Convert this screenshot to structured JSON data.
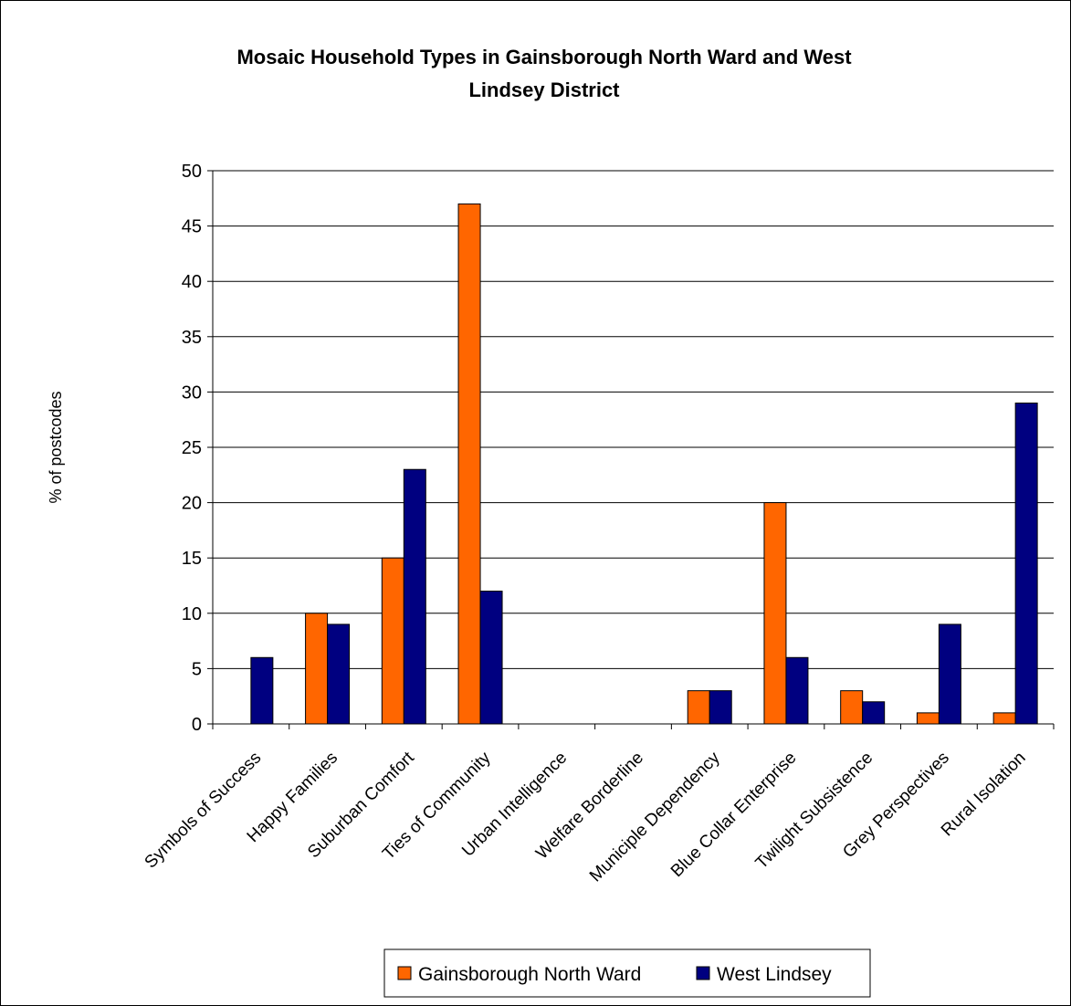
{
  "chart_data": {
    "type": "bar",
    "title": [
      "Mosaic Household Types in Gainsborough North Ward and West",
      "Lindsey District"
    ],
    "xlabel": "",
    "ylabel": "% of postcodes",
    "ylim": [
      0,
      50
    ],
    "yticks": [
      0,
      5,
      10,
      15,
      20,
      25,
      30,
      35,
      40,
      45,
      50
    ],
    "grid": "horizontal",
    "legend_position": "bottom",
    "categories": [
      "Symbols of Success",
      "Happy Families",
      "Suburban Comfort",
      "Ties of Community",
      "Urban Intelligence",
      "Welfare Borderline",
      "Municiple Dependency",
      "Blue Collar Enterprise",
      "Twilight Subsistence",
      "Grey Perspectives",
      "Rural Isolation"
    ],
    "series": [
      {
        "name": "Gainsborough North Ward",
        "color": "#FF6600",
        "values": [
          0,
          10,
          15,
          47,
          0,
          0,
          3,
          20,
          3,
          1,
          1
        ]
      },
      {
        "name": "West Lindsey",
        "color": "#000080",
        "values": [
          6,
          9,
          23,
          12,
          0,
          0,
          3,
          6,
          2,
          9,
          29
        ]
      }
    ]
  }
}
